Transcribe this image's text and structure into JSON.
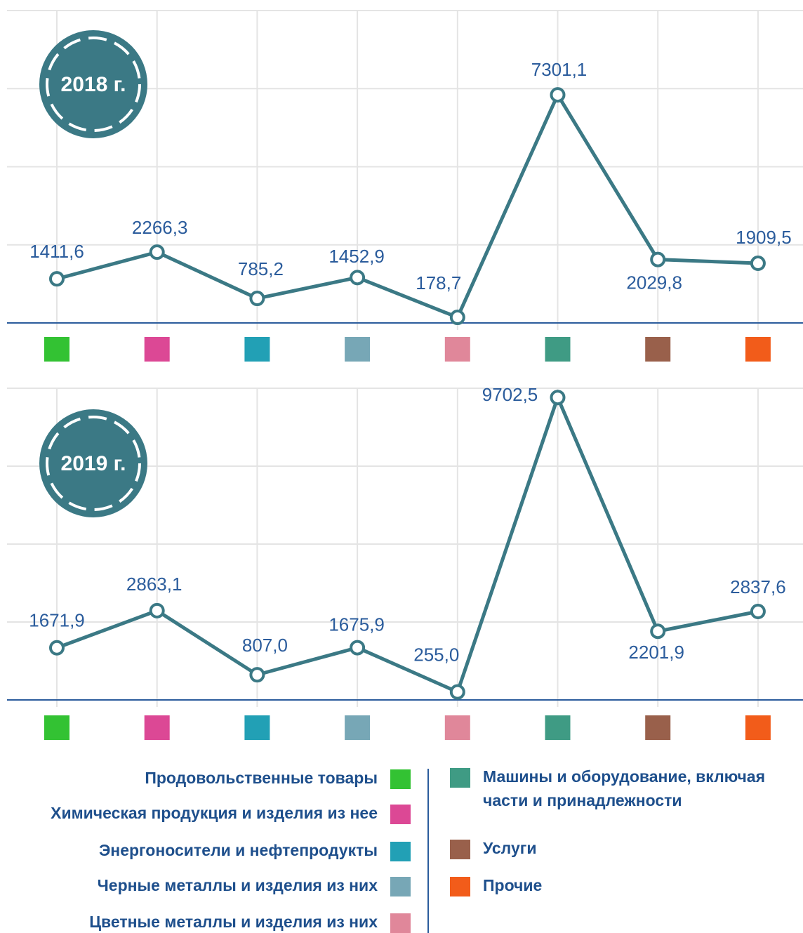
{
  "legend": {
    "labels": [
      "Продовольственные товары",
      "Химическая продукция и изделия из нее",
      "Энергоносители и нефтепродукты",
      "Черные металлы и изделия из них",
      "Цветные металлы и изделия из них",
      "Машины и оборудование, включая",
      "части и принадлежности",
      "Услуги",
      "Прочие"
    ],
    "colors": [
      "#33c233",
      "#dc4895",
      "#22a0b5",
      "#77a7b6",
      "#e0879a",
      "#3f9b84",
      "#99604b",
      "#f25c1a"
    ]
  },
  "chart_data": [
    {
      "type": "line",
      "title": "2018 г.",
      "color": "#3b7985",
      "ylim": [
        0,
        10000
      ],
      "yticks": [
        0,
        2500,
        5000,
        7500,
        10000
      ],
      "grid": true,
      "values": [
        1411.6,
        2266.3,
        785.2,
        1452.9,
        178.7,
        7301.1,
        2029.8,
        1909.5
      ],
      "value_labels": [
        "1411,6",
        "2266,3",
        "785,2",
        "1452,9",
        "178,7",
        "7301,1",
        "2029,8",
        "1909,5"
      ]
    },
    {
      "type": "line",
      "title": "2019 г.",
      "color": "#3b7985",
      "ylim": [
        0,
        10000
      ],
      "yticks": [
        0,
        2500,
        5000,
        7500,
        10000
      ],
      "grid": true,
      "values": [
        1671.9,
        2863.1,
        807.0,
        1675.9,
        255.0,
        9702.5,
        2201.9,
        2837.6
      ],
      "value_labels": [
        "1671,9",
        "2863,1",
        "807,0",
        "1675,9",
        "255,0",
        "9702,5",
        "2201,9",
        "2837,6"
      ]
    }
  ]
}
